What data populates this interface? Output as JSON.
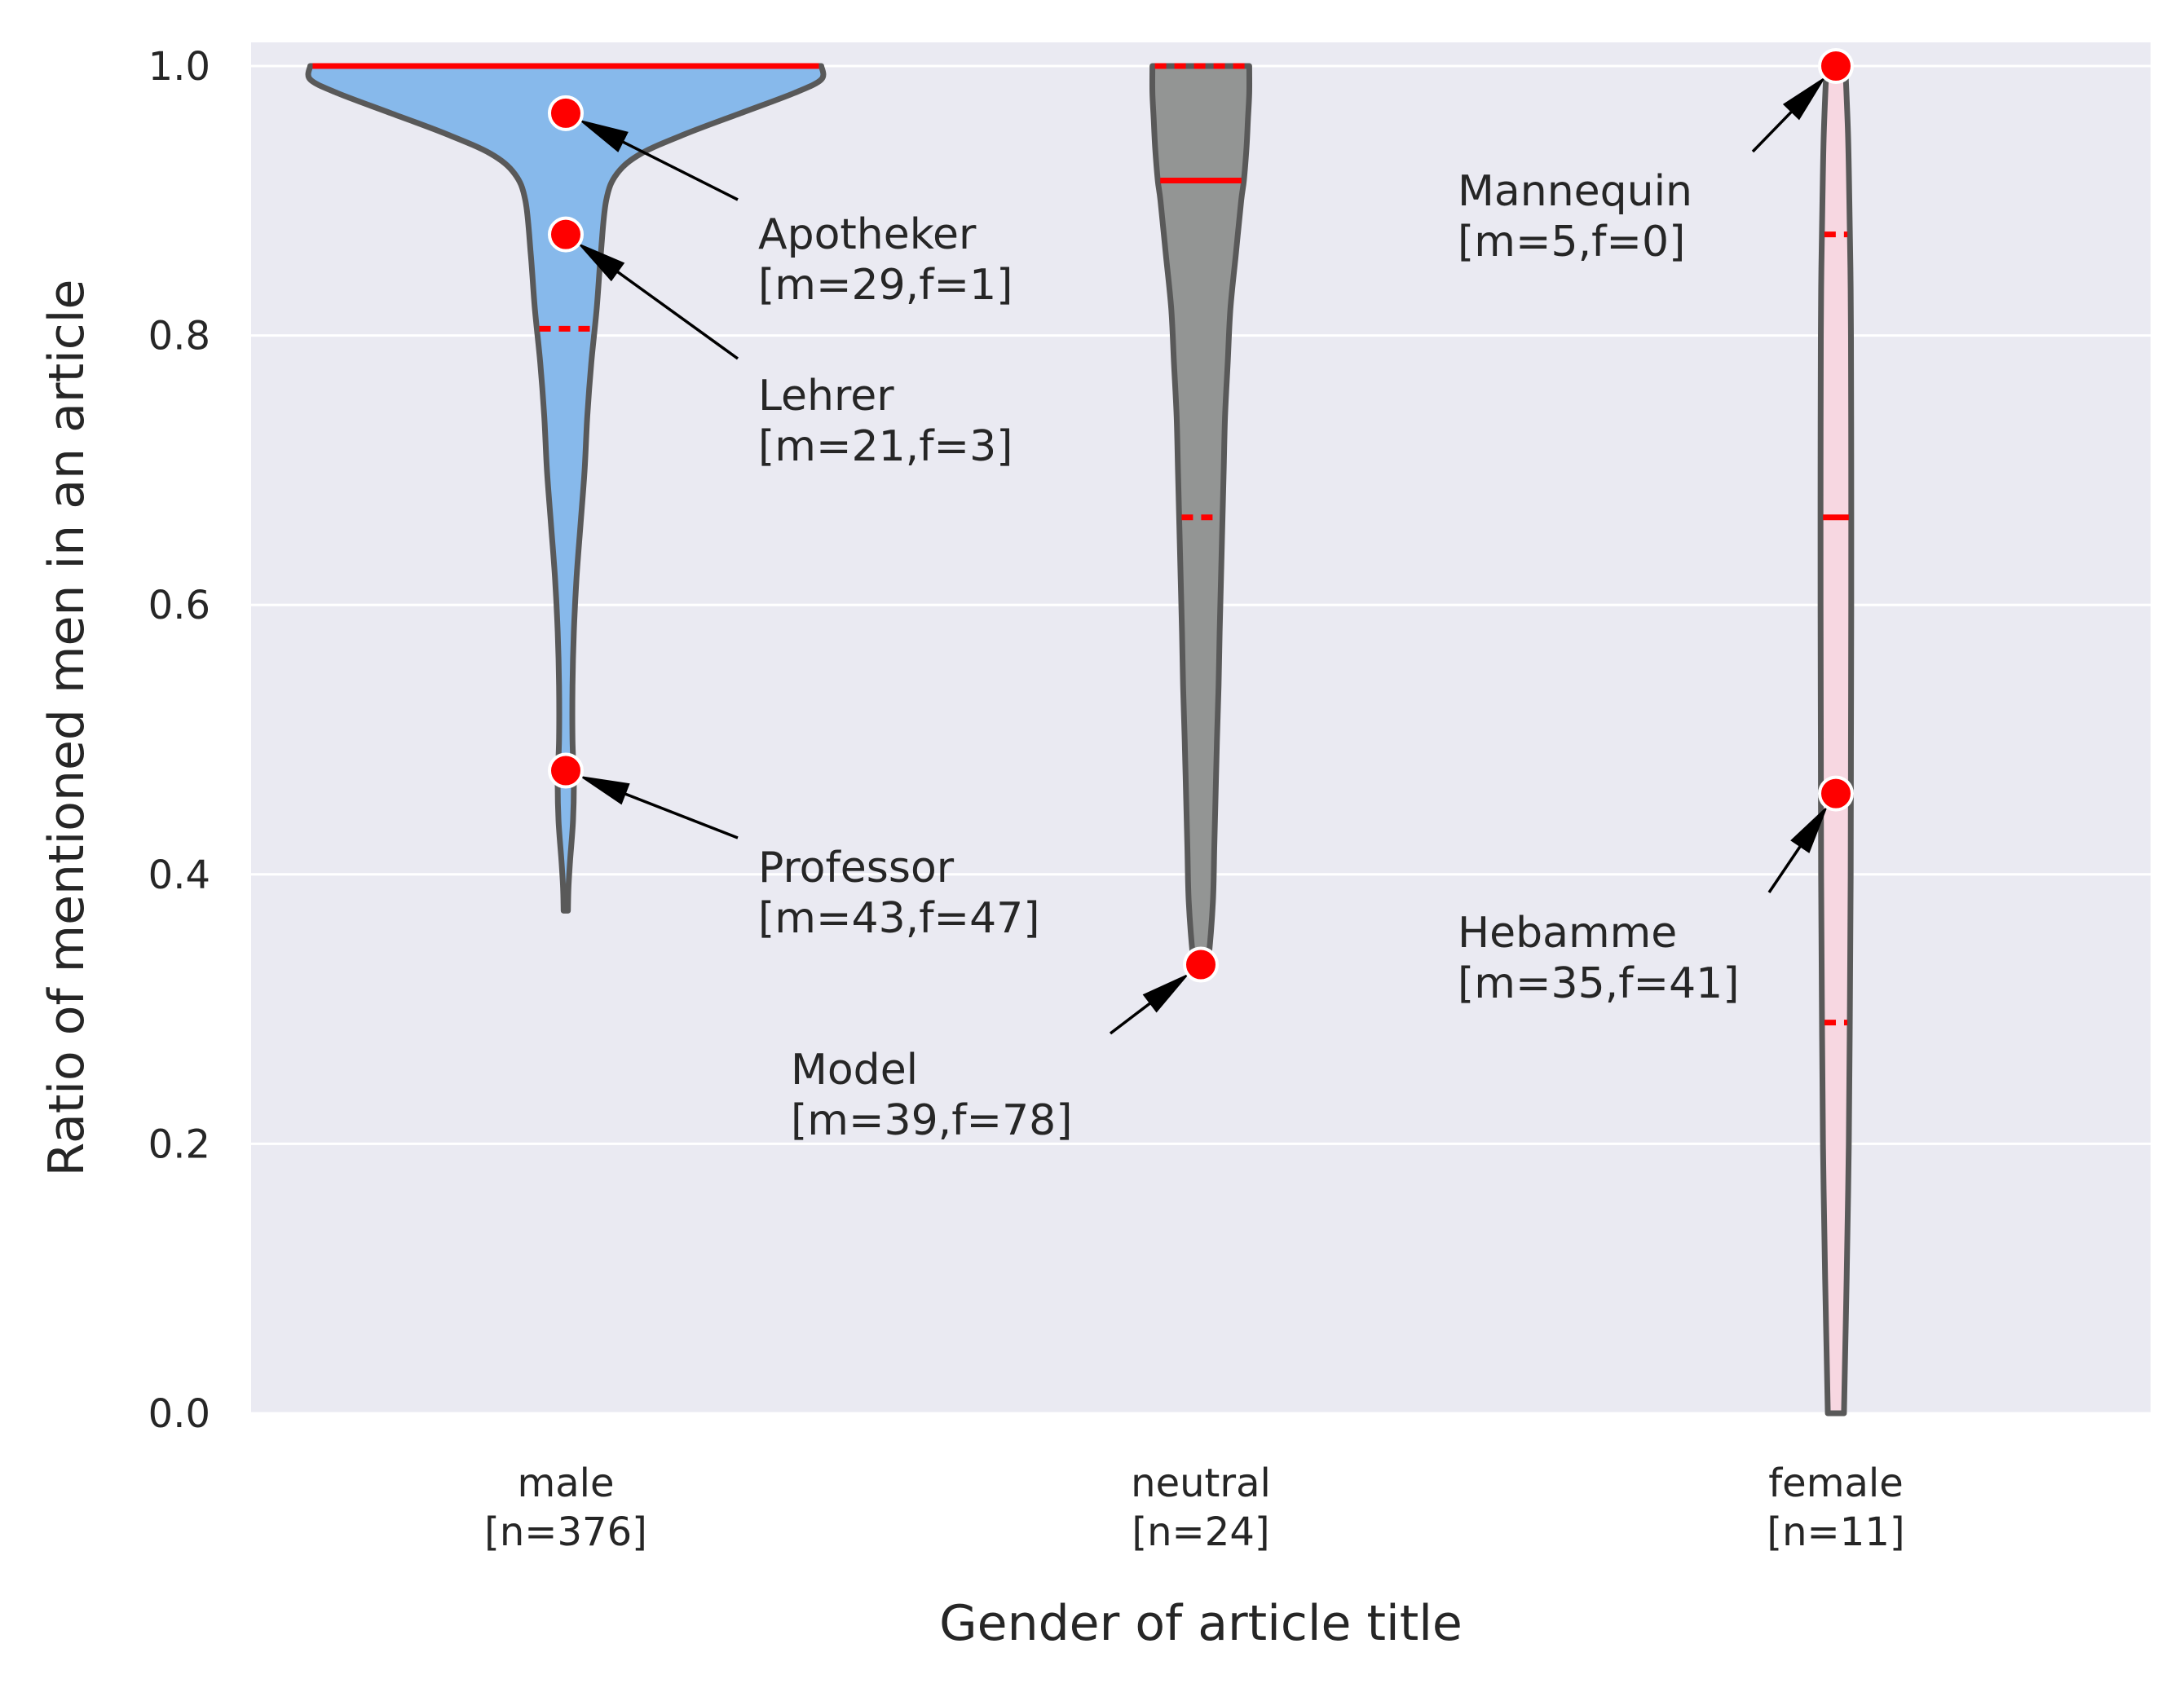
{
  "chart_data": {
    "type": "violin",
    "xlabel": "Gender of article title",
    "ylabel": "Ratio of mentioned men in an article",
    "ylim": [
      0.0,
      1.0
    ],
    "yticks": [
      "0.0",
      "0.2",
      "0.4",
      "0.6",
      "0.8",
      "1.0"
    ],
    "grid": true,
    "categories": [
      {
        "label1": "male",
        "label2": "[n=376]",
        "color": "#87b9eb",
        "median": 1.0,
        "q1": 0.805,
        "q3": 1.0,
        "profile": [
          [
            1.0,
            0.95
          ],
          [
            0.99,
            0.95
          ],
          [
            0.98,
            0.85
          ],
          [
            0.965,
            0.65
          ],
          [
            0.95,
            0.45
          ],
          [
            0.935,
            0.28
          ],
          [
            0.92,
            0.19
          ],
          [
            0.9,
            0.15
          ],
          [
            0.86,
            0.13
          ],
          [
            0.82,
            0.115
          ],
          [
            0.78,
            0.095
          ],
          [
            0.74,
            0.08
          ],
          [
            0.7,
            0.07
          ],
          [
            0.66,
            0.055
          ],
          [
            0.62,
            0.04
          ],
          [
            0.58,
            0.03
          ],
          [
            0.54,
            0.025
          ],
          [
            0.5,
            0.025
          ],
          [
            0.47,
            0.03
          ],
          [
            0.44,
            0.027
          ],
          [
            0.41,
            0.016
          ],
          [
            0.39,
            0.01
          ],
          [
            0.373,
            0.008
          ]
        ]
      },
      {
        "label1": "neutral",
        "label2": "[n=24]",
        "color": "#939594",
        "median": 0.915,
        "q1": 0.665,
        "q3": 1.0,
        "profile": [
          [
            1.0,
            0.18
          ],
          [
            0.98,
            0.18
          ],
          [
            0.96,
            0.175
          ],
          [
            0.94,
            0.17
          ],
          [
            0.915,
            0.16
          ],
          [
            0.9,
            0.15
          ],
          [
            0.86,
            0.13
          ],
          [
            0.82,
            0.11
          ],
          [
            0.78,
            0.1
          ],
          [
            0.74,
            0.09
          ],
          [
            0.7,
            0.085
          ],
          [
            0.66,
            0.08
          ],
          [
            0.62,
            0.075
          ],
          [
            0.58,
            0.07
          ],
          [
            0.54,
            0.066
          ],
          [
            0.5,
            0.06
          ],
          [
            0.46,
            0.055
          ],
          [
            0.42,
            0.05
          ],
          [
            0.38,
            0.045
          ],
          [
            0.34,
            0.03
          ],
          [
            0.333,
            0.022
          ]
        ]
      },
      {
        "label1": "female",
        "label2": "[n=11]",
        "color": "#f7d7e1",
        "median": 0.665,
        "q1": 0.29,
        "q3": 0.875,
        "profile": [
          [
            1.0,
            0.035
          ],
          [
            0.95,
            0.045
          ],
          [
            0.9,
            0.05
          ],
          [
            0.85,
            0.054
          ],
          [
            0.8,
            0.056
          ],
          [
            0.7,
            0.057
          ],
          [
            0.6,
            0.057
          ],
          [
            0.5,
            0.056
          ],
          [
            0.4,
            0.055
          ],
          [
            0.3,
            0.052
          ],
          [
            0.2,
            0.048
          ],
          [
            0.1,
            0.04
          ],
          [
            0.05,
            0.035
          ],
          [
            0.0,
            0.03
          ]
        ]
      }
    ],
    "annotations": [
      {
        "category": 0,
        "y": 0.965,
        "line1": "Apotheker",
        "line2": "[m=29,f=1]"
      },
      {
        "category": 0,
        "y": 0.875,
        "line1": "Lehrer",
        "line2": "[m=21,f=3]"
      },
      {
        "category": 0,
        "y": 0.477,
        "line1": "Professor",
        "line2": "[m=43,f=47]"
      },
      {
        "category": 1,
        "y": 0.333,
        "line1": "Model",
        "line2": "[m=39,f=78]"
      },
      {
        "category": 2,
        "y": 1.0,
        "line1": "Mannequin",
        "line2": "[m=5,f=0]"
      },
      {
        "category": 2,
        "y": 0.46,
        "line1": "Hebamme",
        "line2": "[m=35,f=41]"
      }
    ]
  }
}
